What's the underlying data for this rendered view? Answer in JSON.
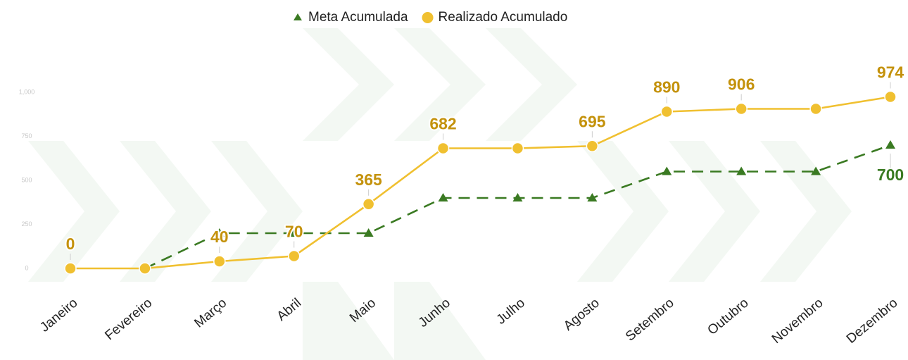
{
  "chart_data": {
    "type": "line",
    "categories": [
      "Janeiro",
      "Fevereiro",
      "Março",
      "Abril",
      "Maio",
      "Junho",
      "Julho",
      "Agosto",
      "Setembro",
      "Outubro",
      "Novembro",
      "Dezembro"
    ],
    "series": [
      {
        "name": "Meta Acumulada",
        "color": "#3a7a22",
        "marker": "triangle",
        "dashed": true,
        "values": [
          null,
          0,
          200,
          200,
          200,
          400,
          400,
          400,
          550,
          550,
          550,
          700
        ],
        "value_labels": [
          null,
          null,
          null,
          null,
          null,
          null,
          null,
          null,
          null,
          null,
          null,
          "700"
        ]
      },
      {
        "name": "Realizado Acumulado",
        "color": "#f0c030",
        "label_color": "#c4920c",
        "marker": "circle",
        "dashed": false,
        "values": [
          0,
          0,
          40,
          70,
          365,
          682,
          682,
          695,
          890,
          906,
          906,
          974
        ],
        "value_labels": [
          "0",
          null,
          "40",
          "70",
          "365",
          "682",
          null,
          "695",
          "890",
          "906",
          null,
          "974"
        ]
      }
    ],
    "ylim": [
      -100,
      1200
    ],
    "yticks": [
      0,
      250,
      500,
      750,
      {
        "value": 1000,
        "label": "1,000"
      }
    ],
    "legend": "top"
  }
}
